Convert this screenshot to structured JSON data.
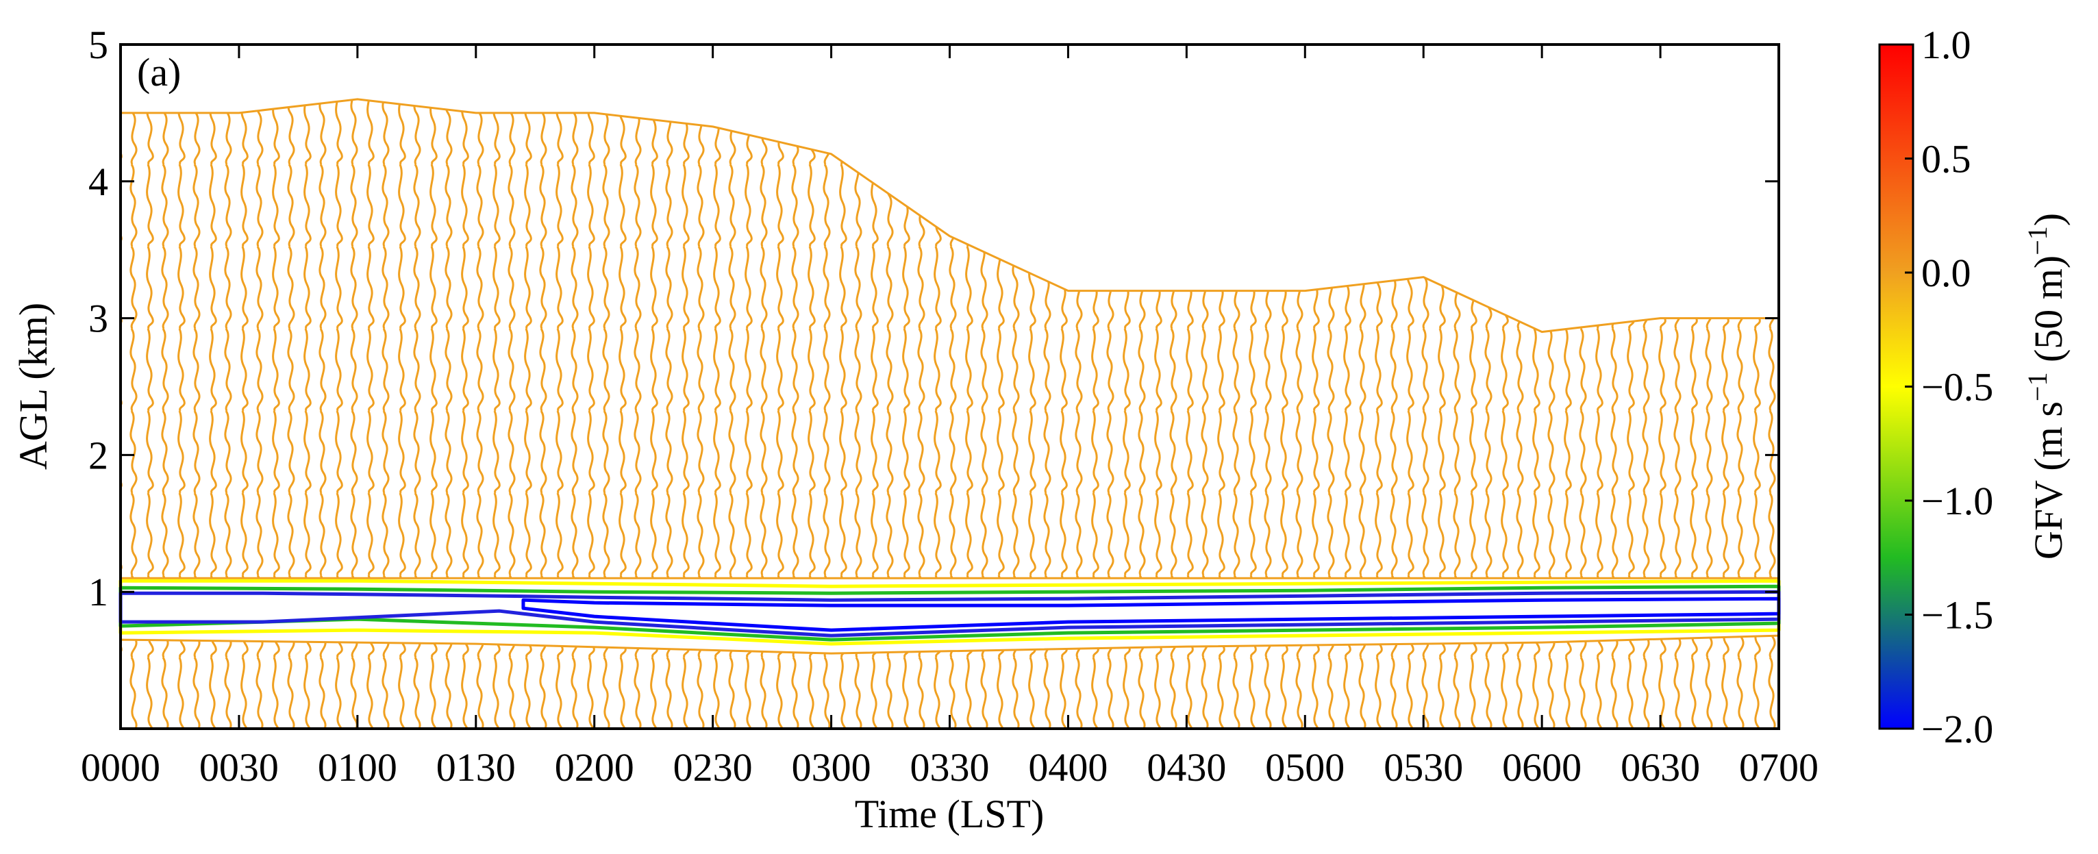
{
  "chart_data": {
    "type": "contour",
    "panel_label": "(a)",
    "xlabel": "Time (LST)",
    "ylabel": "AGL (km)",
    "xlim": [
      0,
      7
    ],
    "xticks": [
      {
        "value": 0,
        "label": "0000"
      },
      {
        "value": 0.5,
        "label": "0030"
      },
      {
        "value": 1,
        "label": "0100"
      },
      {
        "value": 1.5,
        "label": "0130"
      },
      {
        "value": 2,
        "label": "0200"
      },
      {
        "value": 2.5,
        "label": "0230"
      },
      {
        "value": 3,
        "label": "0300"
      },
      {
        "value": 3.5,
        "label": "0330"
      },
      {
        "value": 4,
        "label": "0400"
      },
      {
        "value": 4.5,
        "label": "0430"
      },
      {
        "value": 5,
        "label": "0500"
      },
      {
        "value": 5.5,
        "label": "0530"
      },
      {
        "value": 6,
        "label": "0600"
      },
      {
        "value": 6.5,
        "label": "0630"
      },
      {
        "value": 7,
        "label": "0700"
      }
    ],
    "ylim": [
      0,
      5
    ],
    "yticks": [
      1,
      2,
      3,
      4,
      5
    ],
    "colorbar_label": [
      "GFV (m s",
      "−1",
      " (50 m)",
      "−1",
      ")"
    ],
    "clim": [
      -2,
      1
    ],
    "cticks": [
      {
        "value": 1,
        "label": "1.0"
      },
      0.5,
      {
        "value": 0,
        "label": "0.0"
      },
      {
        "value": -0.5,
        "label": "−0.5"
      },
      {
        "value": -1,
        "label": "−1.0"
      },
      {
        "value": -1.5,
        "label": "−1.5"
      },
      {
        "value": -2,
        "label": "−2.0"
      }
    ],
    "colorscale": [
      [
        -2,
        "#0000ff"
      ],
      [
        -1.25,
        "#22bb22"
      ],
      [
        -0.5,
        "#ffff00"
      ],
      [
        0,
        "#f0a020"
      ],
      [
        1,
        "#ff0000"
      ]
    ],
    "contours": [
      {
        "level": 0,
        "color": "#f0a020",
        "fill": true,
        "x": [
          0,
          0.5,
          1,
          1.5,
          2,
          2.5,
          3,
          3.5,
          4,
          4.5,
          5,
          5.5,
          6,
          6.5,
          7,
          7,
          0
        ],
        "y": [
          4.5,
          4.5,
          4.6,
          4.5,
          4.5,
          4.4,
          4.2,
          3.6,
          3.2,
          3.2,
          3.2,
          3.3,
          2.9,
          3.0,
          3.0,
          1.1,
          1.1
        ]
      },
      {
        "level": 0,
        "color": "#f0a020",
        "fill": true,
        "x": [
          0,
          1.5,
          3,
          4.5,
          6,
          7,
          7,
          0
        ],
        "y": [
          0.65,
          0.62,
          0.55,
          0.6,
          0.63,
          0.68,
          0,
          0
        ]
      },
      {
        "level": -0.5,
        "color": "#ffff00",
        "fill": false,
        "x": [
          0,
          1,
          2,
          3,
          4,
          5,
          6,
          7,
          7,
          6,
          5,
          4,
          3,
          2,
          1,
          0
        ],
        "y": [
          1.08,
          1.08,
          1.06,
          1.04,
          1.05,
          1.06,
          1.07,
          1.08,
          0.72,
          0.7,
          0.68,
          0.66,
          0.62,
          0.7,
          0.72,
          0.7
        ]
      },
      {
        "level": -1,
        "color": "#22bb22",
        "fill": false,
        "x": [
          0,
          1,
          2,
          3,
          4,
          5,
          6,
          7,
          7,
          6,
          5,
          4,
          3,
          2,
          1,
          0
        ],
        "y": [
          1.03,
          1.02,
          1.0,
          0.99,
          1.0,
          1.01,
          1.03,
          1.04,
          0.77,
          0.74,
          0.72,
          0.7,
          0.65,
          0.74,
          0.8,
          0.75
        ]
      },
      {
        "level": -1.5,
        "color": "#2222dd",
        "fill": false,
        "x": [
          0,
          0.6,
          1.6,
          2,
          3,
          4,
          5,
          6,
          7,
          7,
          6,
          5,
          4,
          3,
          2,
          1.6,
          0.6,
          0
        ],
        "y": [
          0.99,
          0.99,
          0.97,
          0.96,
          0.94,
          0.95,
          0.97,
          0.99,
          1.0,
          0.8,
          0.78,
          0.76,
          0.74,
          0.68,
          0.78,
          0.86,
          0.78,
          0.78
        ]
      },
      {
        "level": -2,
        "color": "#0000ff",
        "fill": false,
        "x": [
          1.7,
          2,
          3,
          4,
          5,
          6,
          7,
          7,
          6,
          5,
          4,
          3,
          2,
          1.7
        ],
        "y": [
          0.94,
          0.92,
          0.9,
          0.9,
          0.92,
          0.94,
          0.95,
          0.84,
          0.82,
          0.8,
          0.78,
          0.72,
          0.82,
          0.88
        ]
      }
    ]
  }
}
